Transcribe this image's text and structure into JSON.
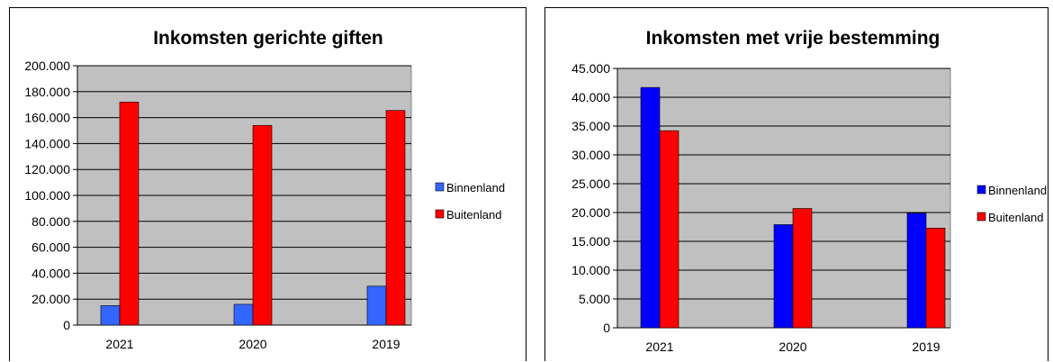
{
  "chart_data": [
    {
      "type": "bar",
      "title": "Inkomsten gerichte giften",
      "categories": [
        "2021",
        "2020",
        "2019"
      ],
      "ylim": [
        0,
        200000
      ],
      "yticks": [
        "0",
        "20.000",
        "40.000",
        "60.000",
        "80.000",
        "100.000",
        "120.000",
        "140.000",
        "160.000",
        "180.000",
        "200.000"
      ],
      "grid": true,
      "legend_position": "right",
      "series": [
        {
          "name": "Binnenland",
          "color": "#3366ff",
          "values": [
            15000,
            16000,
            30000
          ]
        },
        {
          "name": "Buitenland",
          "color": "#ff0000",
          "values": [
            172000,
            154000,
            165500
          ]
        }
      ]
    },
    {
      "type": "bar",
      "title": "Inkomsten met vrije bestemming",
      "categories": [
        "2021",
        "2020",
        "2019"
      ],
      "ylim": [
        0,
        45000
      ],
      "yticks": [
        "0",
        "5.000",
        "10.000",
        "15.000",
        "20.000",
        "25.000",
        "30.000",
        "35.000",
        "40.000",
        "45.000"
      ],
      "grid": true,
      "legend_position": "right",
      "series": [
        {
          "name": "Binnenland",
          "color": "#0000ff",
          "values": [
            41700,
            17900,
            19900
          ]
        },
        {
          "name": "Buitenland",
          "color": "#ff0000",
          "values": [
            34200,
            20700,
            17300
          ]
        }
      ]
    }
  ]
}
